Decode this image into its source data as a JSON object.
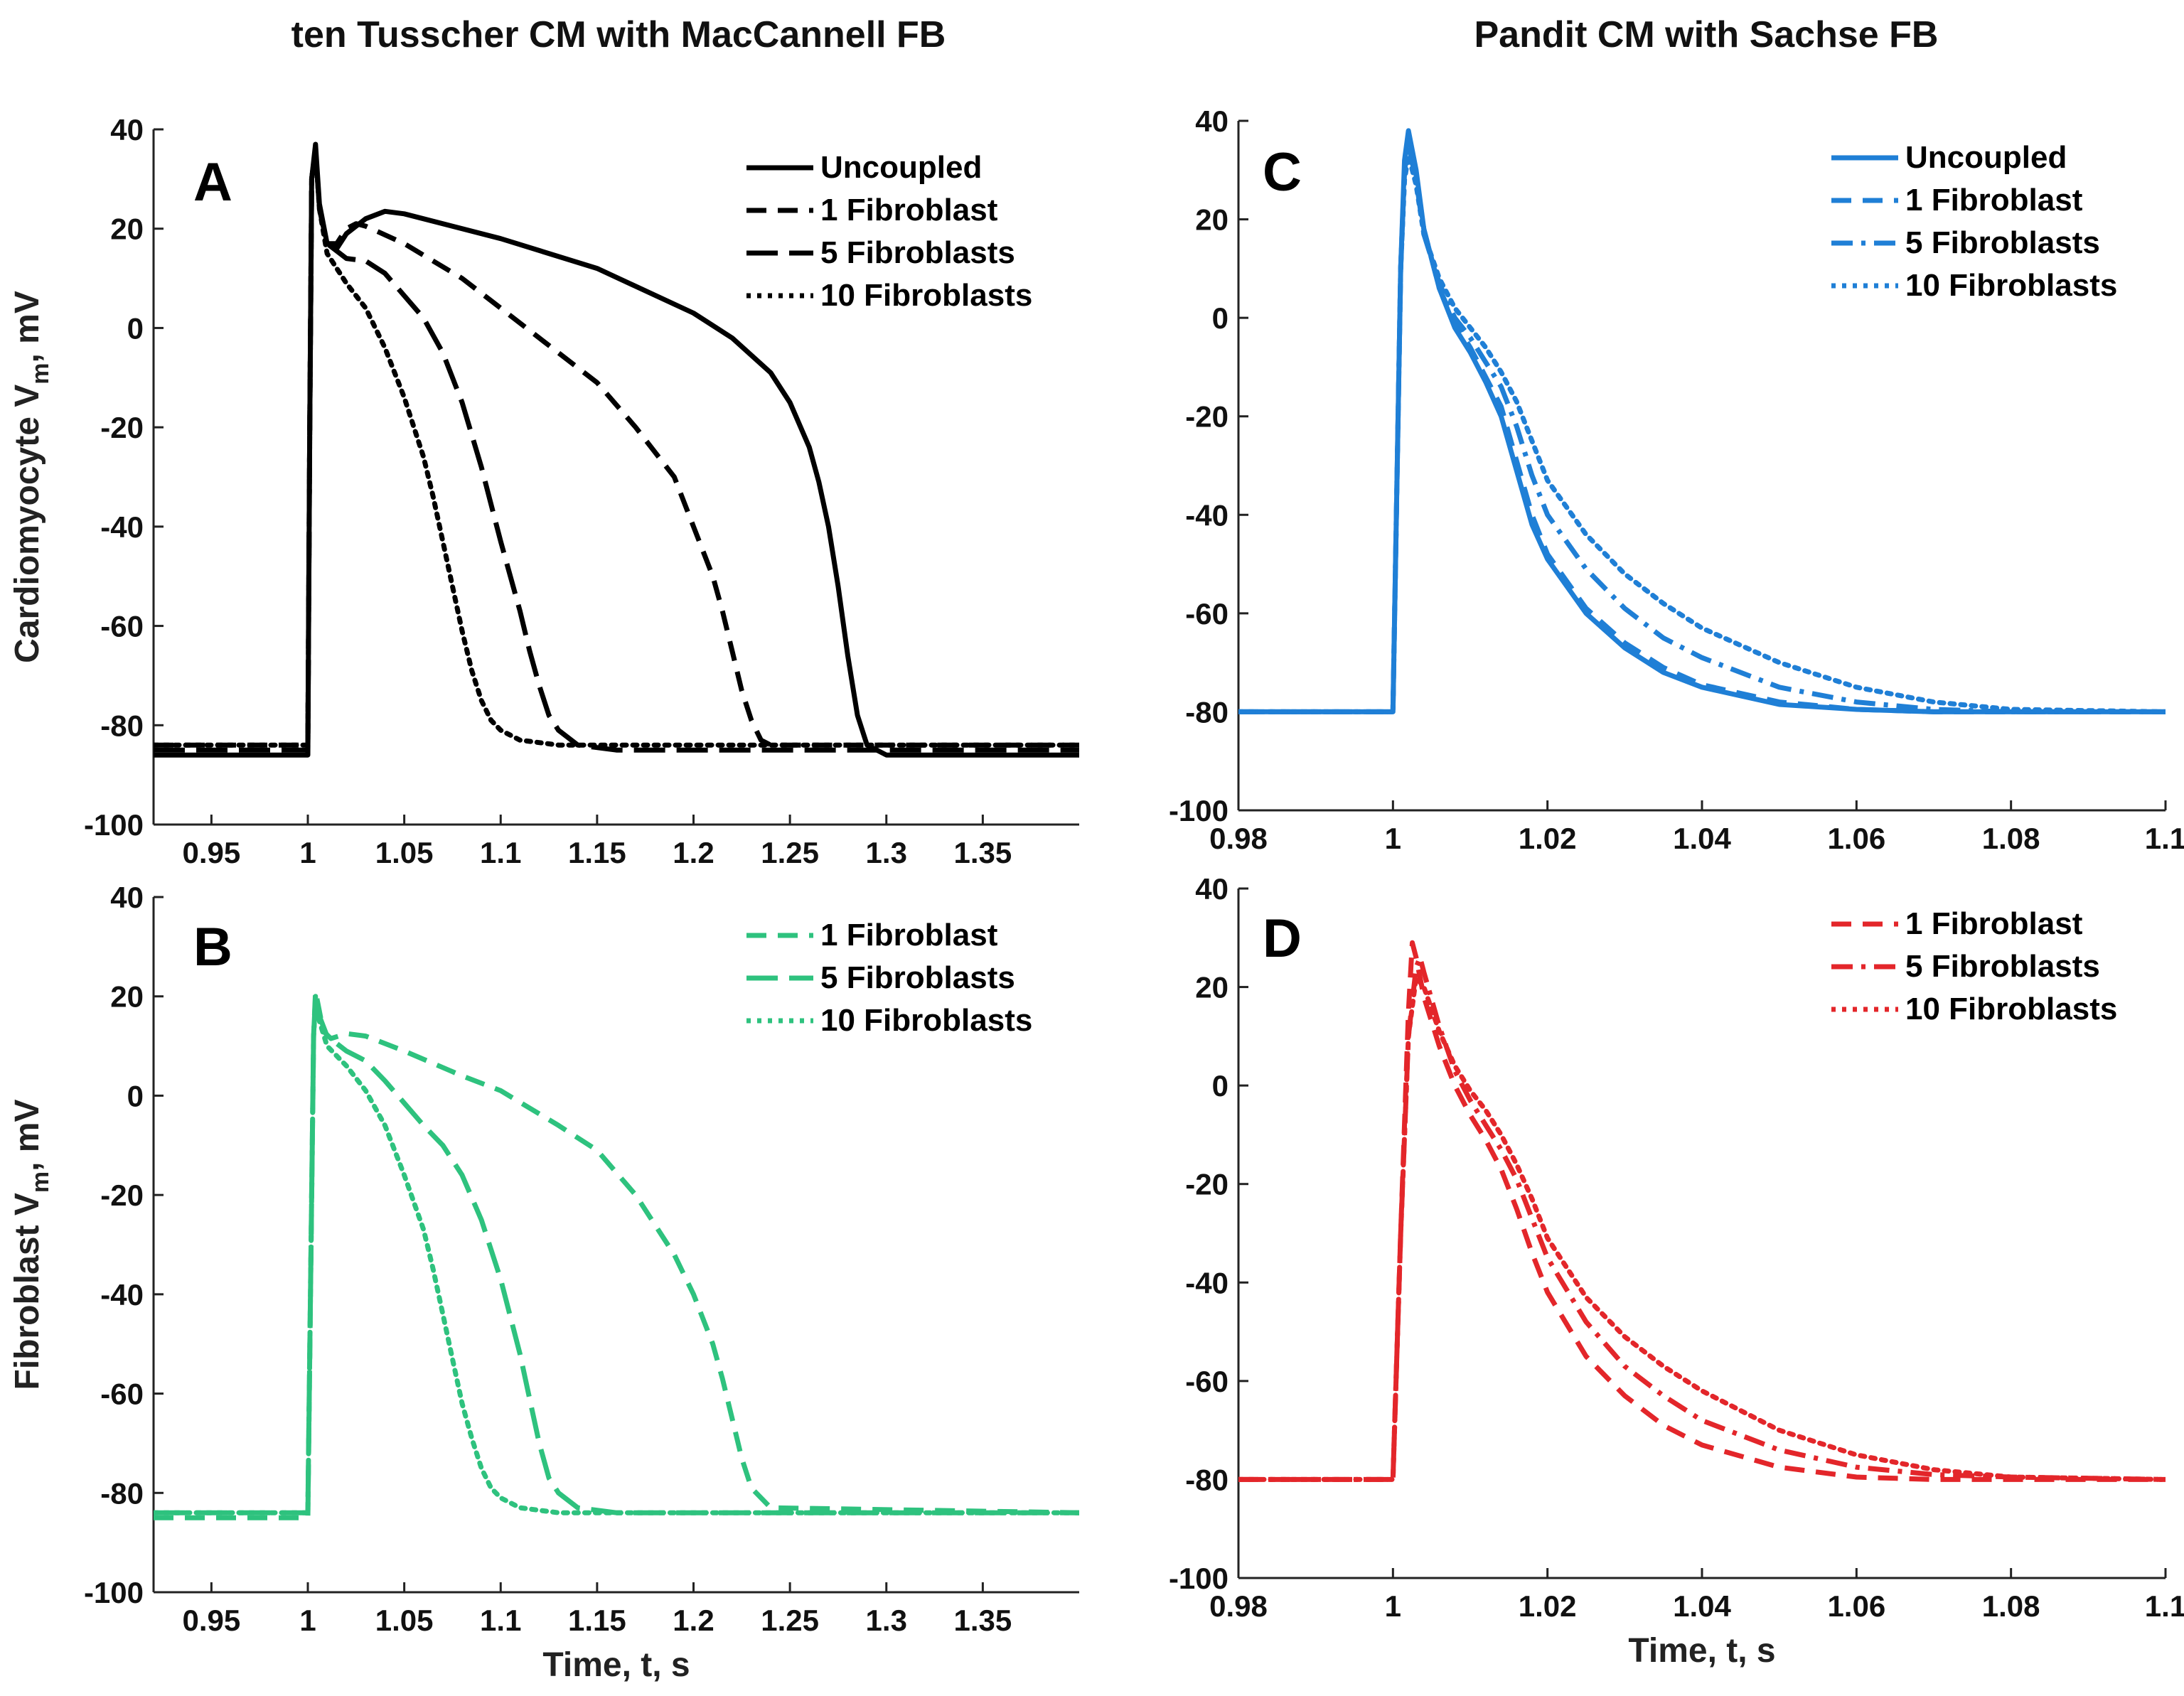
{
  "figure": {
    "column_titles": [
      "ten Tusscher CM with MacCannell FB",
      "Pandit CM with Sachse FB"
    ]
  },
  "chart_data": [
    {
      "type": "line",
      "panel_letter": "A",
      "xlabel": "",
      "ylabel": "Cardiomyocyte V",
      "ylabel_sub": "m",
      "ylabel_suffix": ", mV",
      "xlim": [
        0.92,
        1.4
      ],
      "ylim": [
        -100,
        40
      ],
      "xticks": [
        0.95,
        1,
        1.05,
        1.1,
        1.15,
        1.2,
        1.25,
        1.3,
        1.35
      ],
      "xtick_labels": [
        "0.95",
        "1",
        "1.05",
        "1.1",
        "1.15",
        "1.2",
        "1.25",
        "1.3",
        "1.35"
      ],
      "yticks": [
        -100,
        -80,
        -60,
        -40,
        -20,
        0,
        20,
        40
      ],
      "ytick_labels": [
        "-100",
        "-80",
        "-60",
        "-40",
        "-20",
        "0",
        "20",
        "40"
      ],
      "legend_position": "top-right",
      "color": "#000000",
      "series": [
        {
          "name": "Uncoupled",
          "dash": "solid",
          "x": [
            0.92,
            1.0,
            1.001,
            1.002,
            1.004,
            1.006,
            1.01,
            1.015,
            1.02,
            1.03,
            1.04,
            1.05,
            1.1,
            1.15,
            1.2,
            1.22,
            1.24,
            1.25,
            1.26,
            1.265,
            1.27,
            1.275,
            1.28,
            1.285,
            1.29,
            1.3,
            1.4
          ],
          "y": [
            -86,
            -86,
            -20,
            30,
            37,
            25,
            17,
            16,
            19,
            22,
            23.5,
            23,
            18,
            12,
            3,
            -2,
            -9,
            -15,
            -24,
            -31,
            -40,
            -52,
            -66,
            -78,
            -84,
            -86,
            -86
          ]
        },
        {
          "name": "1 Fibroblast",
          "dash": "dash",
          "x": [
            0.92,
            1.0,
            1.001,
            1.002,
            1.004,
            1.006,
            1.01,
            1.015,
            1.02,
            1.025,
            1.03,
            1.05,
            1.08,
            1.1,
            1.13,
            1.15,
            1.17,
            1.19,
            1.2,
            1.21,
            1.215,
            1.22,
            1.225,
            1.23,
            1.235,
            1.24,
            1.25,
            1.4
          ],
          "y": [
            -84,
            -84,
            -20,
            30,
            36,
            24,
            17,
            17,
            20,
            21,
            20.5,
            17,
            10,
            4,
            -5,
            -11,
            -20,
            -30,
            -40,
            -50,
            -57,
            -65,
            -73,
            -79,
            -83,
            -84,
            -84,
            -84
          ]
        },
        {
          "name": "5 Fibroblasts",
          "dash": "longdash",
          "x": [
            0.92,
            1.0,
            1.001,
            1.002,
            1.004,
            1.006,
            1.01,
            1.02,
            1.03,
            1.04,
            1.06,
            1.07,
            1.08,
            1.09,
            1.1,
            1.11,
            1.115,
            1.12,
            1.125,
            1.13,
            1.14,
            1.16,
            1.4
          ],
          "y": [
            -85,
            -85,
            -20,
            30,
            36,
            24,
            17,
            14,
            13.5,
            11,
            2,
            -5,
            -15,
            -28,
            -43,
            -57,
            -65,
            -72,
            -78,
            -81,
            -84,
            -85,
            -85
          ]
        },
        {
          "name": "10 Fibroblasts",
          "dash": "dot",
          "x": [
            0.92,
            1.0,
            1.001,
            1.002,
            1.004,
            1.006,
            1.01,
            1.02,
            1.03,
            1.04,
            1.05,
            1.06,
            1.065,
            1.07,
            1.075,
            1.08,
            1.085,
            1.09,
            1.095,
            1.1,
            1.11,
            1.13,
            1.15,
            1.4
          ],
          "y": [
            -84,
            -84,
            -20,
            30,
            36,
            24,
            15,
            9,
            4,
            -4,
            -14,
            -26,
            -34,
            -43,
            -52,
            -61,
            -69,
            -75,
            -79,
            -81,
            -83,
            -84,
            -84,
            -84
          ]
        }
      ]
    },
    {
      "type": "line",
      "panel_letter": "C",
      "xlabel": "",
      "ylabel": "",
      "xlim": [
        0.98,
        1.1
      ],
      "ylim": [
        -100,
        40
      ],
      "xticks": [
        0.98,
        1,
        1.02,
        1.04,
        1.06,
        1.08,
        1.1
      ],
      "xtick_labels": [
        "0.98",
        "1",
        "1.02",
        "1.04",
        "1.06",
        "1.08",
        "1.1"
      ],
      "yticks": [
        -100,
        -80,
        -60,
        -40,
        -20,
        0,
        20,
        40
      ],
      "ytick_labels": [
        "-100",
        "-80",
        "-60",
        "-40",
        "-20",
        "0",
        "20",
        "40"
      ],
      "legend_position": "top-right",
      "color": "#1f7fd6",
      "series": [
        {
          "name": "Uncoupled",
          "dash": "solid",
          "x": [
            0.98,
            1.0,
            1.001,
            1.0015,
            1.002,
            1.003,
            1.004,
            1.006,
            1.008,
            1.01,
            1.012,
            1.014,
            1.016,
            1.018,
            1.02,
            1.025,
            1.03,
            1.035,
            1.04,
            1.05,
            1.06,
            1.07,
            1.08,
            1.1
          ],
          "y": [
            -80,
            -80,
            10,
            32,
            38,
            30,
            18,
            6,
            -2,
            -7,
            -13,
            -20,
            -31,
            -42,
            -49,
            -60,
            -67,
            -72,
            -75,
            -78.5,
            -79.5,
            -80,
            -80,
            -80
          ]
        },
        {
          "name": "1 Fibroblast",
          "dash": "dash",
          "x": [
            0.98,
            1.0,
            1.001,
            1.0015,
            1.002,
            1.003,
            1.004,
            1.006,
            1.008,
            1.01,
            1.012,
            1.014,
            1.016,
            1.018,
            1.02,
            1.025,
            1.03,
            1.035,
            1.04,
            1.05,
            1.06,
            1.07,
            1.08,
            1.1
          ],
          "y": [
            -80,
            -80,
            10,
            30,
            36,
            29,
            18,
            6,
            -1,
            -6,
            -12,
            -18,
            -29,
            -40,
            -48,
            -59,
            -66,
            -71,
            -74.5,
            -78,
            -79.5,
            -80,
            -80,
            -80
          ]
        },
        {
          "name": "5 Fibroblasts",
          "dash": "dashdot",
          "x": [
            0.98,
            1.0,
            1.001,
            1.0015,
            1.002,
            1.003,
            1.004,
            1.006,
            1.008,
            1.01,
            1.012,
            1.014,
            1.016,
            1.018,
            1.02,
            1.025,
            1.03,
            1.035,
            1.04,
            1.05,
            1.06,
            1.07,
            1.08,
            1.1
          ],
          "y": [
            -80,
            -80,
            10,
            30,
            35,
            28,
            17,
            7,
            0,
            -4,
            -9,
            -14,
            -22,
            -32,
            -40,
            -51,
            -59,
            -65,
            -69,
            -75,
            -78,
            -79.5,
            -80,
            -80
          ]
        },
        {
          "name": "10 Fibroblasts",
          "dash": "dot",
          "x": [
            0.98,
            1.0,
            1.001,
            1.0015,
            1.002,
            1.003,
            1.004,
            1.006,
            1.008,
            1.01,
            1.012,
            1.014,
            1.016,
            1.018,
            1.02,
            1.025,
            1.03,
            1.035,
            1.04,
            1.05,
            1.06,
            1.07,
            1.08,
            1.1
          ],
          "y": [
            -80,
            -80,
            10,
            28,
            33,
            27,
            17,
            8,
            2,
            -2,
            -6,
            -11,
            -17,
            -25,
            -33,
            -44,
            -52,
            -58,
            -63,
            -70,
            -75,
            -78,
            -79.5,
            -80
          ]
        }
      ]
    },
    {
      "type": "line",
      "panel_letter": "B",
      "xlabel": "Time, t, s",
      "ylabel": "Fibroblast V",
      "ylabel_sub": "m",
      "ylabel_suffix": ", mV",
      "xlim": [
        0.92,
        1.4
      ],
      "ylim": [
        -100,
        40
      ],
      "xticks": [
        0.95,
        1,
        1.05,
        1.1,
        1.15,
        1.2,
        1.25,
        1.3,
        1.35
      ],
      "xtick_labels": [
        "0.95",
        "1",
        "1.05",
        "1.1",
        "1.15",
        "1.2",
        "1.25",
        "1.3",
        "1.35"
      ],
      "yticks": [
        -100,
        -80,
        -60,
        -40,
        -20,
        0,
        20,
        40
      ],
      "ytick_labels": [
        "-100",
        "-80",
        "-60",
        "-40",
        "-20",
        "0",
        "20",
        "40"
      ],
      "legend_position": "top-right",
      "color": "#2ec27e",
      "series": [
        {
          "name": "1 Fibroblast",
          "dash": "dash",
          "x": [
            0.92,
            1.0,
            1.002,
            1.003,
            1.004,
            1.006,
            1.008,
            1.012,
            1.02,
            1.03,
            1.05,
            1.08,
            1.1,
            1.13,
            1.15,
            1.17,
            1.19,
            1.2,
            1.21,
            1.215,
            1.22,
            1.225,
            1.23,
            1.24,
            1.4
          ],
          "y": [
            -85,
            -85,
            -20,
            12,
            21,
            17,
            13,
            11.5,
            12.5,
            12,
            9,
            4,
            1,
            -6,
            -11,
            -20,
            -32,
            -40,
            -50,
            -57,
            -65,
            -73,
            -79,
            -83,
            -84
          ]
        },
        {
          "name": "5 Fibroblasts",
          "dash": "longdash",
          "x": [
            0.92,
            1.0,
            1.002,
            1.003,
            1.004,
            1.006,
            1.01,
            1.02,
            1.03,
            1.04,
            1.06,
            1.07,
            1.08,
            1.09,
            1.1,
            1.11,
            1.115,
            1.12,
            1.125,
            1.13,
            1.14,
            1.16,
            1.4
          ],
          "y": [
            -84,
            -84,
            -20,
            12,
            20,
            16,
            12,
            9,
            7,
            3,
            -6,
            -10,
            -16,
            -25,
            -37,
            -52,
            -61,
            -70,
            -77,
            -80,
            -83,
            -84,
            -84
          ]
        },
        {
          "name": "10 Fibroblasts",
          "dash": "dot",
          "x": [
            0.92,
            1.0,
            1.002,
            1.003,
            1.004,
            1.006,
            1.01,
            1.02,
            1.03,
            1.04,
            1.05,
            1.06,
            1.065,
            1.07,
            1.075,
            1.08,
            1.085,
            1.09,
            1.095,
            1.1,
            1.11,
            1.13,
            1.15,
            1.4
          ],
          "y": [
            -84,
            -84,
            -20,
            12,
            19,
            15,
            10,
            6,
            1,
            -6,
            -16,
            -27,
            -35,
            -44,
            -53,
            -62,
            -69,
            -75,
            -79,
            -81,
            -83,
            -84,
            -84,
            -84
          ]
        }
      ]
    },
    {
      "type": "line",
      "panel_letter": "D",
      "xlabel": "Time, t, s",
      "ylabel": "",
      "xlim": [
        0.98,
        1.1
      ],
      "ylim": [
        -100,
        40
      ],
      "xticks": [
        0.98,
        1,
        1.02,
        1.04,
        1.06,
        1.08,
        1.1
      ],
      "xtick_labels": [
        "0.98",
        "1",
        "1.02",
        "1.04",
        "1.06",
        "1.08",
        "1.1"
      ],
      "yticks": [
        -100,
        -80,
        -60,
        -40,
        -20,
        0,
        20,
        40
      ],
      "ytick_labels": [
        "-100",
        "-80",
        "-60",
        "-40",
        "-20",
        "0",
        "20",
        "40"
      ],
      "legend_position": "top-right",
      "color": "#e3262a",
      "series": [
        {
          "name": "1 Fibroblast",
          "dash": "dash",
          "x": [
            0.98,
            1.0,
            1.001,
            1.002,
            1.0025,
            1.003,
            1.004,
            1.006,
            1.008,
            1.01,
            1.012,
            1.014,
            1.016,
            1.018,
            1.02,
            1.025,
            1.03,
            1.035,
            1.04,
            1.05,
            1.06,
            1.07,
            1.08,
            1.1
          ],
          "y": [
            -80,
            -80,
            -30,
            15,
            29,
            26,
            18,
            8,
            0,
            -6,
            -11,
            -17,
            -25,
            -34,
            -42,
            -55,
            -63,
            -69,
            -73,
            -77.5,
            -79.5,
            -80,
            -80,
            -80
          ]
        },
        {
          "name": "5 Fibroblasts",
          "dash": "dashdot",
          "x": [
            0.98,
            1.0,
            1.001,
            1.002,
            1.003,
            1.0035,
            1.004,
            1.006,
            1.008,
            1.01,
            1.012,
            1.014,
            1.016,
            1.018,
            1.02,
            1.025,
            1.03,
            1.035,
            1.04,
            1.05,
            1.06,
            1.07,
            1.08,
            1.1
          ],
          "y": [
            -80,
            -80,
            -30,
            10,
            24,
            26,
            23,
            12,
            3,
            -3,
            -8,
            -13,
            -19,
            -27,
            -35,
            -48,
            -57,
            -63,
            -68,
            -74,
            -77.5,
            -79,
            -79.5,
            -80
          ]
        },
        {
          "name": "10 Fibroblasts",
          "dash": "dot",
          "x": [
            0.98,
            1.0,
            1.001,
            1.002,
            1.003,
            1.004,
            1.006,
            1.008,
            1.01,
            1.012,
            1.014,
            1.016,
            1.018,
            1.02,
            1.025,
            1.03,
            1.035,
            1.04,
            1.05,
            1.06,
            1.07,
            1.08,
            1.1
          ],
          "y": [
            -80,
            -80,
            -30,
            10,
            22,
            20,
            11,
            4,
            -1,
            -5,
            -10,
            -16,
            -23,
            -31,
            -43,
            -51,
            -57,
            -62,
            -70,
            -75,
            -78,
            -79.5,
            -80
          ]
        }
      ]
    }
  ]
}
